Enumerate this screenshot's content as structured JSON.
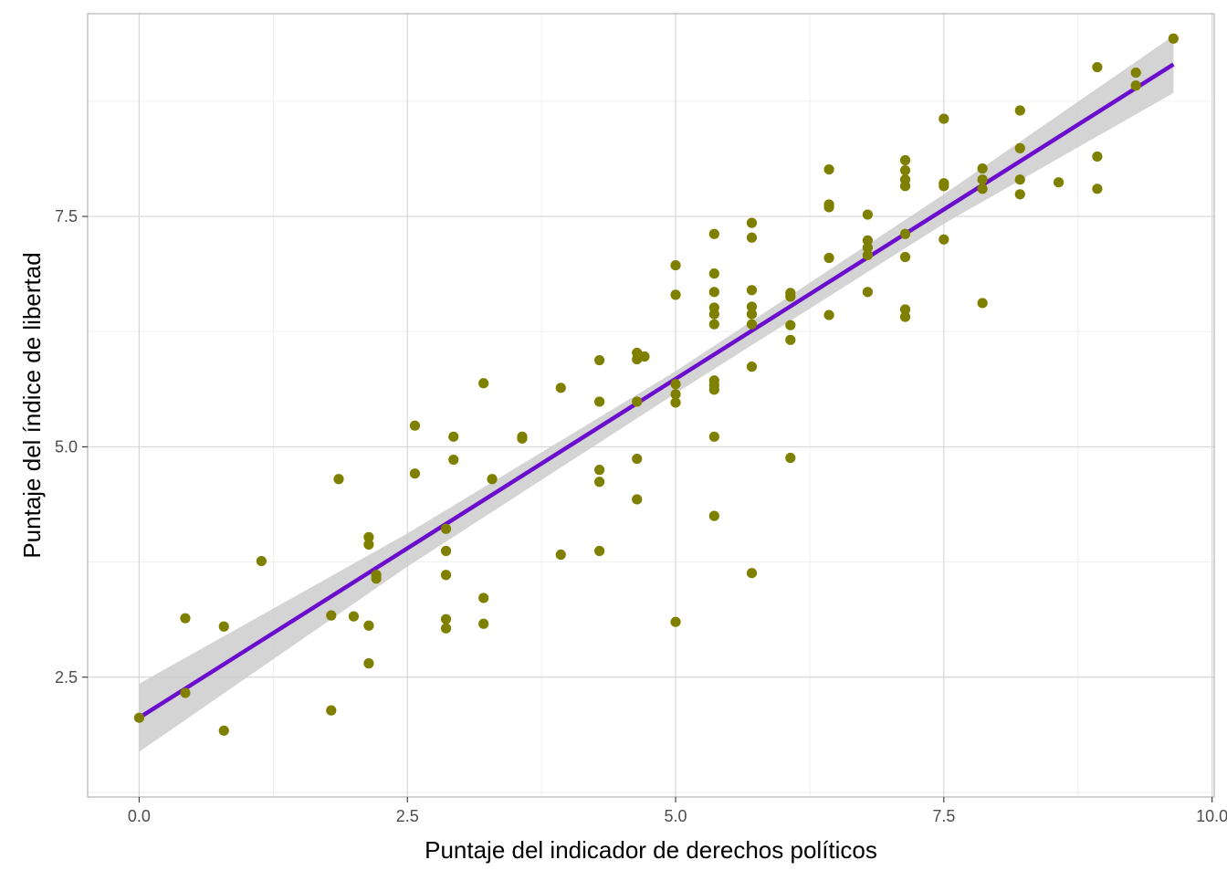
{
  "chart_data": {
    "type": "scatter",
    "title": "",
    "xlabel": "Puntaje del indicador de derechos políticos",
    "ylabel": "Puntaje del índice de libertad",
    "xlim": [
      -0.48,
      10.02
    ],
    "ylim": [
      1.2,
      9.7
    ],
    "x_ticks": [
      0.0,
      2.5,
      5.0,
      7.5,
      10.0
    ],
    "x_tick_labels": [
      "0.0",
      "2.5",
      "5.0",
      "7.5",
      "10.0"
    ],
    "y_ticks": [
      2.5,
      5.0,
      7.5
    ],
    "y_tick_labels": [
      "2.5",
      "5.0",
      "7.5"
    ],
    "grid": true,
    "point_color": "#7f7f00",
    "line_color": "#6a0dcc",
    "band_color": "#cccccc",
    "regression_line": [
      [
        0.0,
        2.06
      ],
      [
        9.64,
        9.15
      ]
    ],
    "confidence_band": {
      "x": [
        0.0,
        2.5,
        5.0,
        7.5,
        9.64
      ],
      "lower": [
        1.69,
        3.7,
        5.58,
        7.42,
        8.84
      ],
      "upper": [
        2.43,
        4.06,
        5.82,
        7.74,
        9.46
      ]
    },
    "points": [
      {
        "x": 0.0,
        "y": 2.06
      },
      {
        "x": 0.43,
        "y": 3.14
      },
      {
        "x": 0.43,
        "y": 2.33
      },
      {
        "x": 0.79,
        "y": 3.05
      },
      {
        "x": 0.79,
        "y": 1.92
      },
      {
        "x": 1.14,
        "y": 3.76
      },
      {
        "x": 1.79,
        "y": 3.17
      },
      {
        "x": 1.79,
        "y": 2.14
      },
      {
        "x": 1.86,
        "y": 4.65
      },
      {
        "x": 2.0,
        "y": 3.16
      },
      {
        "x": 2.14,
        "y": 4.02
      },
      {
        "x": 2.14,
        "y": 3.94
      },
      {
        "x": 2.14,
        "y": 3.06
      },
      {
        "x": 2.14,
        "y": 2.65
      },
      {
        "x": 2.21,
        "y": 3.61
      },
      {
        "x": 2.21,
        "y": 3.57
      },
      {
        "x": 2.57,
        "y": 5.23
      },
      {
        "x": 2.57,
        "y": 4.71
      },
      {
        "x": 2.86,
        "y": 4.11
      },
      {
        "x": 2.86,
        "y": 3.87
      },
      {
        "x": 2.86,
        "y": 3.61
      },
      {
        "x": 2.86,
        "y": 3.13
      },
      {
        "x": 2.86,
        "y": 3.03
      },
      {
        "x": 2.93,
        "y": 5.11
      },
      {
        "x": 2.93,
        "y": 4.86
      },
      {
        "x": 3.21,
        "y": 5.69
      },
      {
        "x": 3.21,
        "y": 3.36
      },
      {
        "x": 3.21,
        "y": 3.08
      },
      {
        "x": 3.29,
        "y": 4.65
      },
      {
        "x": 3.57,
        "y": 5.11
      },
      {
        "x": 3.57,
        "y": 5.09
      },
      {
        "x": 3.93,
        "y": 5.64
      },
      {
        "x": 3.93,
        "y": 3.83
      },
      {
        "x": 4.29,
        "y": 5.94
      },
      {
        "x": 4.29,
        "y": 5.49
      },
      {
        "x": 4.29,
        "y": 4.75
      },
      {
        "x": 4.29,
        "y": 4.62
      },
      {
        "x": 4.29,
        "y": 3.87
      },
      {
        "x": 4.64,
        "y": 6.02
      },
      {
        "x": 4.64,
        "y": 5.95
      },
      {
        "x": 4.64,
        "y": 5.49
      },
      {
        "x": 4.64,
        "y": 4.87
      },
      {
        "x": 4.64,
        "y": 4.43
      },
      {
        "x": 4.71,
        "y": 5.98
      },
      {
        "x": 5.0,
        "y": 6.97
      },
      {
        "x": 5.0,
        "y": 6.65
      },
      {
        "x": 5.0,
        "y": 5.68
      },
      {
        "x": 5.0,
        "y": 5.57
      },
      {
        "x": 5.0,
        "y": 5.48
      },
      {
        "x": 5.0,
        "y": 3.1
      },
      {
        "x": 5.36,
        "y": 7.31
      },
      {
        "x": 5.36,
        "y": 6.88
      },
      {
        "x": 5.36,
        "y": 6.68
      },
      {
        "x": 5.36,
        "y": 6.51
      },
      {
        "x": 5.36,
        "y": 6.44
      },
      {
        "x": 5.36,
        "y": 6.33
      },
      {
        "x": 5.36,
        "y": 5.72
      },
      {
        "x": 5.36,
        "y": 5.67
      },
      {
        "x": 5.36,
        "y": 5.62
      },
      {
        "x": 5.36,
        "y": 5.11
      },
      {
        "x": 5.36,
        "y": 4.25
      },
      {
        "x": 5.71,
        "y": 7.43
      },
      {
        "x": 5.71,
        "y": 7.27
      },
      {
        "x": 5.71,
        "y": 6.7
      },
      {
        "x": 5.71,
        "y": 6.52
      },
      {
        "x": 5.71,
        "y": 6.44
      },
      {
        "x": 5.71,
        "y": 6.33
      },
      {
        "x": 5.71,
        "y": 5.87
      },
      {
        "x": 5.71,
        "y": 3.63
      },
      {
        "x": 6.07,
        "y": 6.67
      },
      {
        "x": 6.07,
        "y": 6.63
      },
      {
        "x": 6.07,
        "y": 6.32
      },
      {
        "x": 6.07,
        "y": 6.16
      },
      {
        "x": 6.07,
        "y": 4.88
      },
      {
        "x": 6.43,
        "y": 8.01
      },
      {
        "x": 6.43,
        "y": 7.63
      },
      {
        "x": 6.43,
        "y": 7.6
      },
      {
        "x": 6.43,
        "y": 7.05
      },
      {
        "x": 6.43,
        "y": 6.43
      },
      {
        "x": 6.79,
        "y": 7.52
      },
      {
        "x": 6.79,
        "y": 7.24
      },
      {
        "x": 6.79,
        "y": 7.16
      },
      {
        "x": 6.79,
        "y": 7.08
      },
      {
        "x": 6.79,
        "y": 6.68
      },
      {
        "x": 7.14,
        "y": 8.11
      },
      {
        "x": 7.14,
        "y": 8.0
      },
      {
        "x": 7.14,
        "y": 7.9
      },
      {
        "x": 7.14,
        "y": 7.83
      },
      {
        "x": 7.14,
        "y": 7.31
      },
      {
        "x": 7.14,
        "y": 7.06
      },
      {
        "x": 7.14,
        "y": 6.49
      },
      {
        "x": 7.14,
        "y": 6.41
      },
      {
        "x": 7.5,
        "y": 8.56
      },
      {
        "x": 7.5,
        "y": 7.86
      },
      {
        "x": 7.5,
        "y": 7.83
      },
      {
        "x": 7.5,
        "y": 7.25
      },
      {
        "x": 7.86,
        "y": 8.02
      },
      {
        "x": 7.86,
        "y": 7.9
      },
      {
        "x": 7.86,
        "y": 7.8
      },
      {
        "x": 7.86,
        "y": 6.56
      },
      {
        "x": 8.21,
        "y": 8.65
      },
      {
        "x": 8.21,
        "y": 8.24
      },
      {
        "x": 8.21,
        "y": 7.9
      },
      {
        "x": 8.21,
        "y": 7.74
      },
      {
        "x": 8.57,
        "y": 7.87
      },
      {
        "x": 8.93,
        "y": 9.12
      },
      {
        "x": 8.93,
        "y": 8.15
      },
      {
        "x": 8.93,
        "y": 7.8
      },
      {
        "x": 9.29,
        "y": 9.06
      },
      {
        "x": 9.29,
        "y": 8.92
      },
      {
        "x": 9.64,
        "y": 9.43
      }
    ]
  }
}
